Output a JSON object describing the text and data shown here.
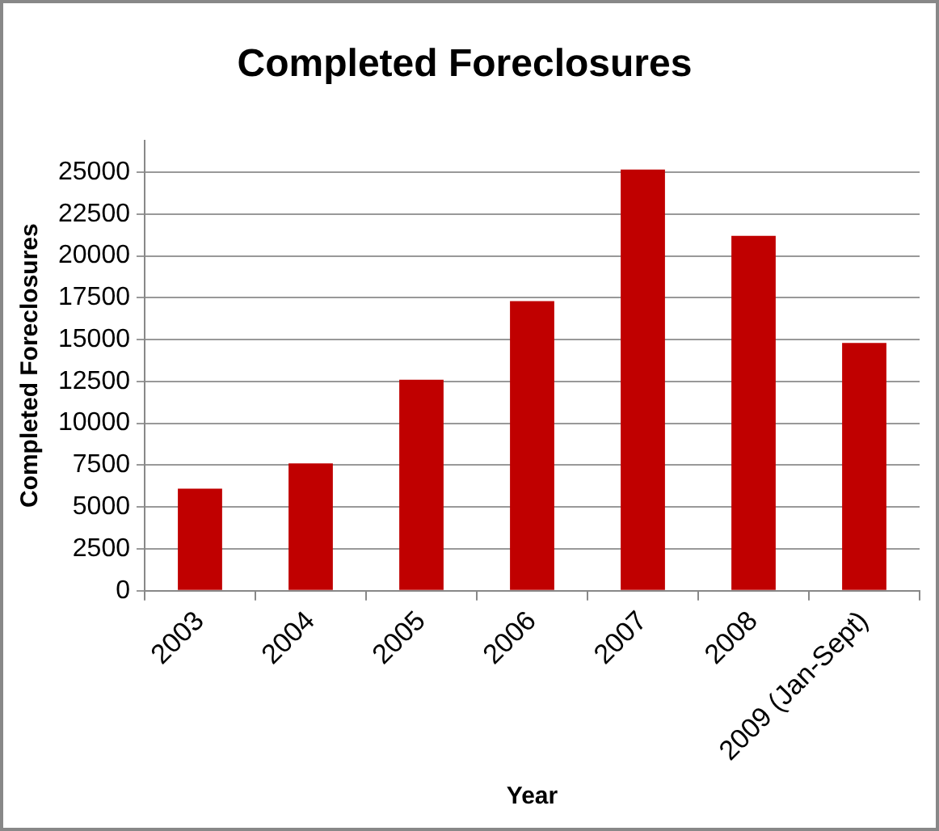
{
  "chart_data": {
    "type": "bar",
    "title": "Completed Foreclosures",
    "xlabel": "Year",
    "ylabel": "Completed Foreclosures",
    "categories": [
      "2003",
      "2004",
      "2005",
      "2006",
      "2007",
      "2008",
      "2009 (Jan-Sept)"
    ],
    "values": [
      6100,
      7600,
      12600,
      17300,
      25150,
      21200,
      14800
    ],
    "color": "#c00000",
    "ylim": [
      0,
      26900
    ],
    "yticks": [
      0,
      2500,
      5000,
      7500,
      10000,
      12500,
      15000,
      17500,
      20000,
      22500,
      25000
    ],
    "grid": "y",
    "legend": false
  }
}
